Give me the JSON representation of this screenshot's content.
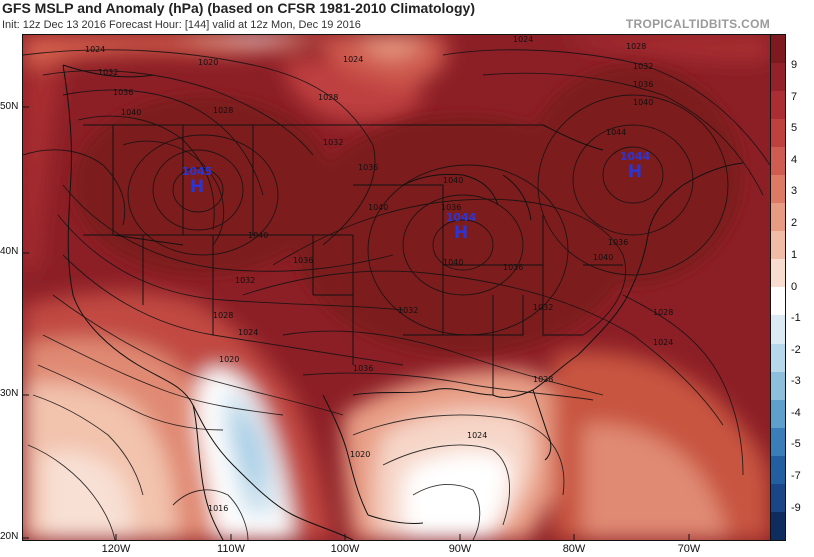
{
  "header": {
    "title": "GFS MSLP and Anomaly (hPa) (based on CFSR 1981-2010 Climatology)",
    "subtitle": "Init: 12z Dec 13 2016   Forecast Hour: [144]   valid at 12z Mon, Dec 19 2016",
    "brand": "TROPICALTIDBITS.COM"
  },
  "axes": {
    "lat_labels": [
      "50N",
      "40N",
      "30N",
      "20N"
    ],
    "lon_labels": [
      "120W",
      "110W",
      "100W",
      "90W",
      "80W",
      "70W"
    ]
  },
  "pressure_centers": [
    {
      "symbol": "H",
      "value": "1045"
    },
    {
      "symbol": "H",
      "value": "1044"
    },
    {
      "symbol": "H",
      "value": "1044"
    }
  ],
  "isobar_labels": [
    "1024",
    "1020",
    "1032",
    "1036",
    "1040",
    "1028",
    "1024",
    "1028",
    "1032",
    "1036",
    "1040",
    "1040",
    "1036",
    "1032",
    "1028",
    "1024",
    "1020",
    "1036",
    "1032",
    "1040",
    "1036",
    "1040",
    "1036",
    "1032",
    "1028",
    "1024",
    "1020",
    "1016",
    "1024",
    "1028",
    "1032",
    "1036",
    "1040",
    "1044",
    "1040",
    "1036",
    "1028",
    "1024",
    "1020"
  ],
  "colorbar": {
    "labels": [
      "9",
      "7",
      "5",
      "4",
      "3",
      "2",
      "1",
      "0",
      "-1",
      "-2",
      "-3",
      "-4",
      "-5",
      "-7",
      "-9"
    ],
    "colors": [
      "#7d1a1f",
      "#93212a",
      "#a92d33",
      "#bf413f",
      "#cf5c50",
      "#dd7a66",
      "#e89b83",
      "#f1bca6",
      "#f7dccf",
      "#ffffff",
      "#dbeaf3",
      "#b7d7ea",
      "#8dbfdd",
      "#5e9fcb",
      "#3a7db8",
      "#235fa0",
      "#1a4687",
      "#0f2c5e"
    ]
  }
}
